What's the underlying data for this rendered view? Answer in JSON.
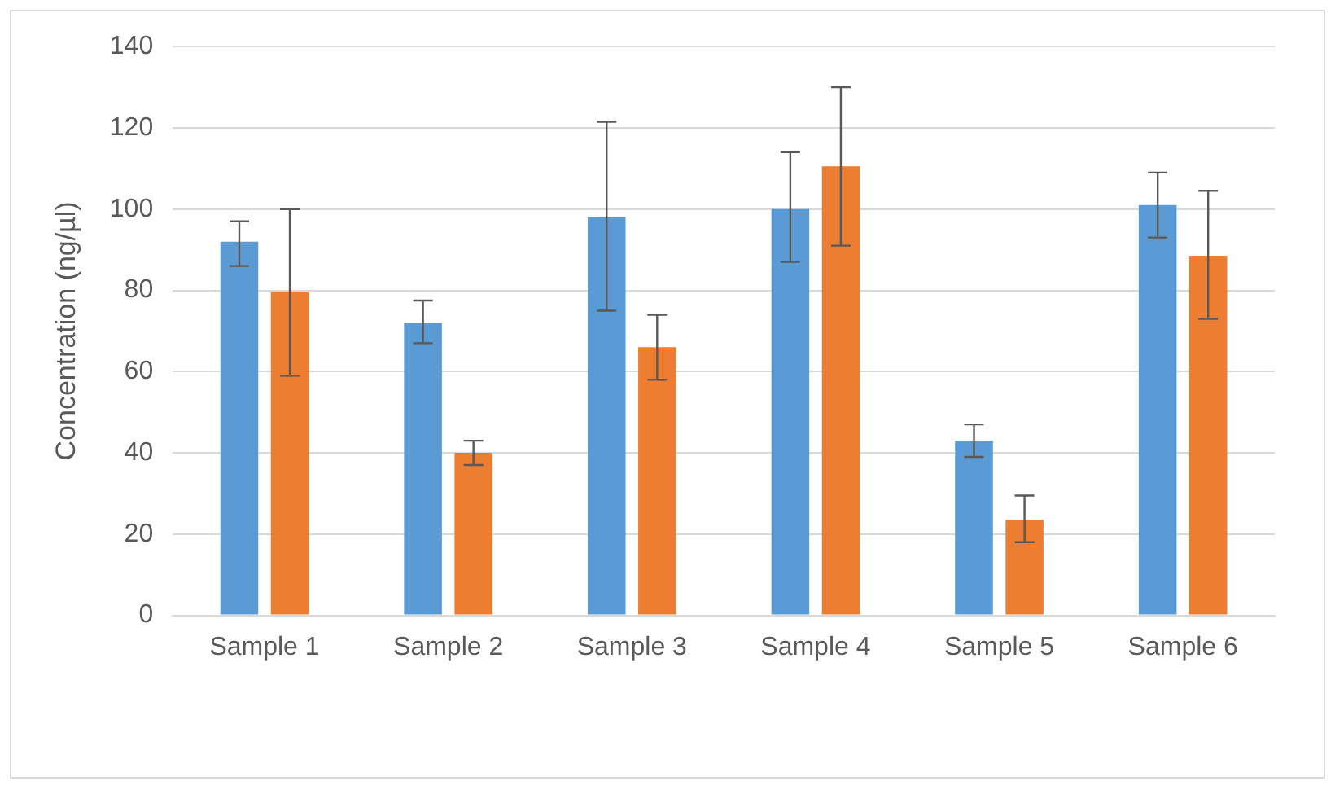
{
  "chart_data": {
    "type": "bar",
    "ylabel": "Concentration (ng/µl)",
    "categories": [
      "Sample 1",
      "Sample 2",
      "Sample 3",
      "Sample 4",
      "Sample 5",
      "Sample 6"
    ],
    "series": [
      {
        "color": "#5b9bd5",
        "values": [
          92,
          72,
          98,
          100,
          43,
          101
        ],
        "errors": [
          [
            86,
            97
          ],
          [
            67,
            77.5
          ],
          [
            75,
            121.5
          ],
          [
            87,
            114
          ],
          [
            39,
            47
          ],
          [
            93,
            109
          ]
        ]
      },
      {
        "color": "#ed7d31",
        "values": [
          79.5,
          40,
          66,
          110.5,
          23.5,
          88.5
        ],
        "errors": [
          [
            59,
            100
          ],
          [
            37,
            43
          ],
          [
            58,
            74
          ],
          [
            91,
            130
          ],
          [
            18,
            29.5
          ],
          [
            73,
            104.5
          ]
        ]
      }
    ],
    "ylim": [
      0,
      140
    ],
    "yticks": [
      0,
      20,
      40,
      60,
      80,
      100,
      120,
      140
    ],
    "grid": "y",
    "legend": false
  }
}
